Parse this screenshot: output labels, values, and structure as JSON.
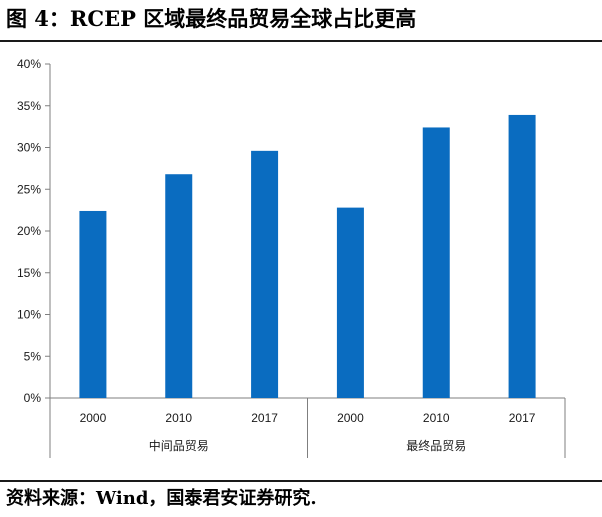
{
  "figure": {
    "title": "图 4：RCEP 区域最终品贸易全球占比更高",
    "source": "资料来源：Wind，国泰君安证券研究."
  },
  "colors": {
    "bar": "#0a6cc0",
    "axis": "#7f7f7f",
    "text": "#1a1a1a"
  },
  "chart_data": {
    "type": "bar",
    "title": "",
    "xlabel": "",
    "ylabel": "",
    "ylim": [
      0,
      40
    ],
    "y_ticks": [
      "0%",
      "5%",
      "10%",
      "15%",
      "20%",
      "25%",
      "30%",
      "35%",
      "40%"
    ],
    "grid": false,
    "legend": "none",
    "groups": [
      {
        "name": "中间品贸易",
        "categories": [
          "2000",
          "2010",
          "2017"
        ],
        "values": [
          22.4,
          26.8,
          29.6
        ]
      },
      {
        "name": "最终品贸易",
        "categories": [
          "2000",
          "2010",
          "2017"
        ],
        "values": [
          22.8,
          32.4,
          33.9
        ]
      }
    ]
  }
}
